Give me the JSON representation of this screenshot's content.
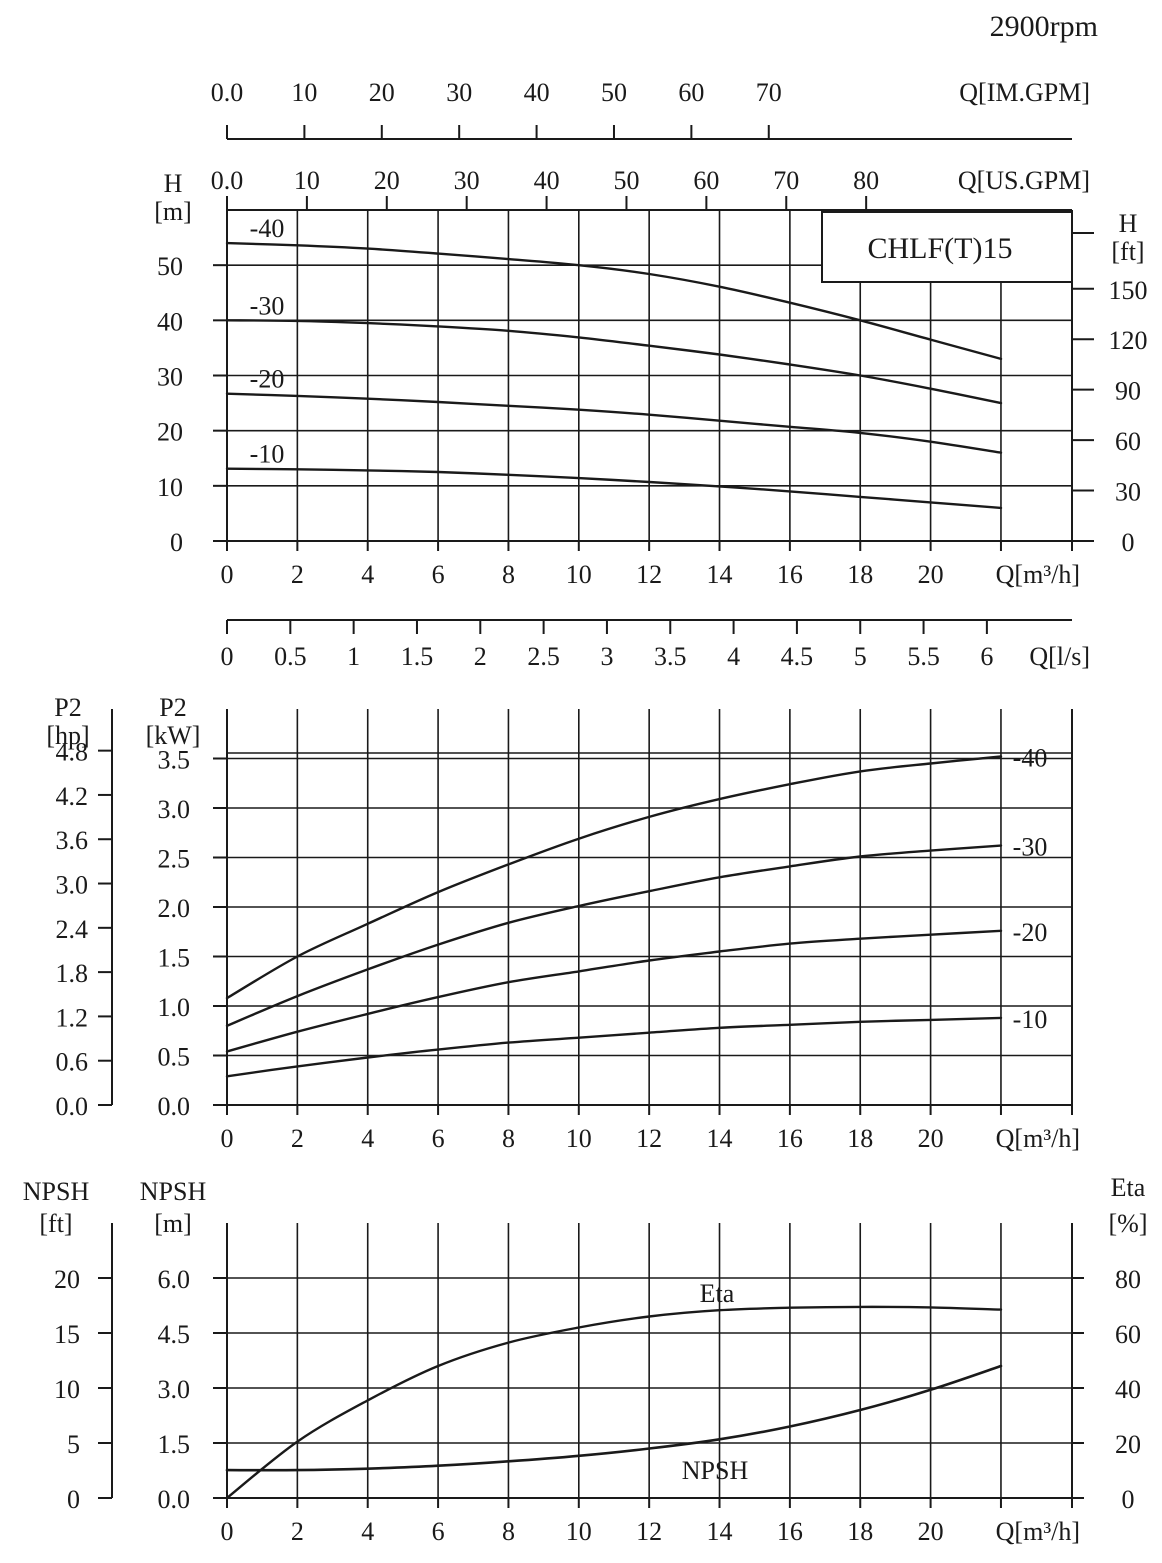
{
  "speed_label": "2900rpm",
  "model_label": "CHLF(T)15",
  "chart_data": [
    {
      "type": "line",
      "id": "head",
      "xlabel": "Q[m³/h]",
      "ylabel_left": [
        "H",
        "[m]"
      ],
      "ylabel_right": [
        "H",
        "[ft]"
      ],
      "xlim": [
        0,
        24
      ],
      "ylim": [
        0,
        60
      ],
      "grid": true,
      "x_ticks": [
        0,
        2,
        4,
        6,
        8,
        10,
        12,
        14,
        16,
        18,
        20
      ],
      "y_ticks": [
        0,
        10,
        20,
        30,
        40,
        50
      ],
      "ft_ticks": [
        0,
        30,
        60,
        90,
        120,
        150
      ],
      "secondary_axes": [
        {
          "label": "Q[IM.GPM]",
          "ticks": [
            "0.0",
            "10",
            "20",
            "30",
            "40",
            "50",
            "60",
            "70"
          ],
          "values": [
            0,
            10,
            20,
            30,
            40,
            50,
            60,
            70
          ],
          "factor_m3h": 0.22
        },
        {
          "label": "Q[US.GPM]",
          "ticks": [
            "0.0",
            "10",
            "20",
            "30",
            "40",
            "50",
            "60",
            "70",
            "80"
          ],
          "values": [
            0,
            10,
            20,
            30,
            40,
            50,
            60,
            70,
            80
          ],
          "factor_m3h": 0.2271
        },
        {
          "label": "Q[l/s]",
          "ticks": [
            "0",
            "0.5",
            "1",
            "1.5",
            "2",
            "2.5",
            "3",
            "3.5",
            "4",
            "4.5",
            "5",
            "5.5",
            "6"
          ],
          "values": [
            0,
            0.5,
            1,
            1.5,
            2,
            2.5,
            3,
            3.5,
            4,
            4.5,
            5,
            5.5,
            6
          ],
          "factor_m3h": 3.6
        }
      ],
      "x": [
        0,
        2,
        4,
        6,
        8,
        10,
        12,
        14,
        16,
        18,
        20,
        22
      ],
      "series": [
        {
          "name": "-40",
          "values": [
            54,
            53.6,
            53,
            52.1,
            51.1,
            50,
            48.4,
            46.1,
            43.2,
            40,
            36.5,
            33
          ]
        },
        {
          "name": "-30",
          "values": [
            40,
            39.9,
            39.5,
            38.9,
            38.1,
            36.9,
            35.4,
            33.8,
            32,
            30,
            27.6,
            25
          ]
        },
        {
          "name": "-20",
          "values": [
            26.7,
            26.3,
            25.8,
            25.2,
            24.5,
            23.8,
            22.9,
            21.8,
            20.7,
            19.6,
            18,
            16
          ]
        },
        {
          "name": "-10",
          "values": [
            13.1,
            13,
            12.8,
            12.5,
            12,
            11.4,
            10.7,
            9.9,
            9,
            8,
            7,
            6
          ]
        }
      ]
    },
    {
      "type": "line",
      "id": "power",
      "xlabel": "Q[m³/h]",
      "ylabel_left_kw": [
        "P2",
        "[kW]"
      ],
      "ylabel_left_hp": [
        "P2",
        "[hp]"
      ],
      "xlim": [
        0,
        24
      ],
      "ylim": [
        0,
        4.0
      ],
      "grid": true,
      "x_ticks": [
        0,
        2,
        4,
        6,
        8,
        10,
        12,
        14,
        16,
        18,
        20
      ],
      "kw_ticks": [
        "0.0",
        "0.5",
        "1.0",
        "1.5",
        "2.0",
        "2.5",
        "3.0",
        "3.5"
      ],
      "kw_values": [
        0,
        0.5,
        1.0,
        1.5,
        2.0,
        2.5,
        3.0,
        3.5
      ],
      "hp_ticks": [
        "0.0",
        "0.6",
        "1.2",
        "1.8",
        "2.4",
        "3.0",
        "3.6",
        "4.2",
        "4.8"
      ],
      "hp_values": [
        0,
        0.6,
        1.2,
        1.8,
        2.4,
        3.0,
        3.6,
        4.2,
        4.8
      ],
      "x": [
        0,
        2,
        4,
        6,
        8,
        10,
        12,
        14,
        16,
        18,
        20,
        22
      ],
      "series": [
        {
          "name": "-40",
          "values": [
            1.08,
            1.5,
            1.83,
            2.15,
            2.43,
            2.69,
            2.91,
            3.09,
            3.24,
            3.37,
            3.45,
            3.52
          ]
        },
        {
          "name": "-30",
          "values": [
            0.8,
            1.1,
            1.37,
            1.62,
            1.84,
            2.01,
            2.16,
            2.3,
            2.41,
            2.51,
            2.57,
            2.62
          ]
        },
        {
          "name": "-20",
          "values": [
            0.54,
            0.74,
            0.92,
            1.09,
            1.24,
            1.35,
            1.46,
            1.55,
            1.63,
            1.68,
            1.72,
            1.76
          ]
        },
        {
          "name": "-10",
          "values": [
            0.29,
            0.39,
            0.48,
            0.56,
            0.63,
            0.68,
            0.73,
            0.78,
            0.81,
            0.84,
            0.86,
            0.88
          ]
        }
      ]
    },
    {
      "type": "line",
      "id": "npsh_eta",
      "xlabel": "Q[m³/h]",
      "ylabel_left_m": [
        "NPSH",
        "[m]"
      ],
      "ylabel_left_ft": [
        "NPSH",
        "[ft]"
      ],
      "ylabel_right": [
        "Eta",
        "[%]"
      ],
      "xlim": [
        0,
        24
      ],
      "ylim": [
        0,
        7.5
      ],
      "grid": true,
      "x_ticks": [
        0,
        2,
        4,
        6,
        8,
        10,
        12,
        14,
        16,
        18,
        20
      ],
      "m_ticks": [
        "0.0",
        "1.5",
        "3.0",
        "4.5",
        "6.0"
      ],
      "m_values": [
        0,
        1.5,
        3.0,
        4.5,
        6.0
      ],
      "ft_ticks": [
        "0",
        "5",
        "10",
        "15",
        "20"
      ],
      "ft_values": [
        0,
        5,
        10,
        15,
        20
      ],
      "eta_ticks": [
        "0",
        "20",
        "40",
        "60",
        "80"
      ],
      "eta_values": [
        0,
        20,
        40,
        60,
        80
      ],
      "x": [
        0,
        2,
        4,
        6,
        8,
        10,
        12,
        14,
        16,
        18,
        20,
        22
      ],
      "series": [
        {
          "name": "Eta",
          "axis": "right",
          "values": [
            0,
            20.5,
            35.5,
            48,
            56.5,
            62,
            66,
            68.3,
            69.2,
            69.5,
            69.3,
            68.5
          ]
        },
        {
          "name": "NPSH",
          "axis": "left",
          "values": [
            0.76,
            0.76,
            0.8,
            0.88,
            1.0,
            1.15,
            1.35,
            1.6,
            1.95,
            2.4,
            2.95,
            3.6
          ]
        }
      ]
    }
  ]
}
